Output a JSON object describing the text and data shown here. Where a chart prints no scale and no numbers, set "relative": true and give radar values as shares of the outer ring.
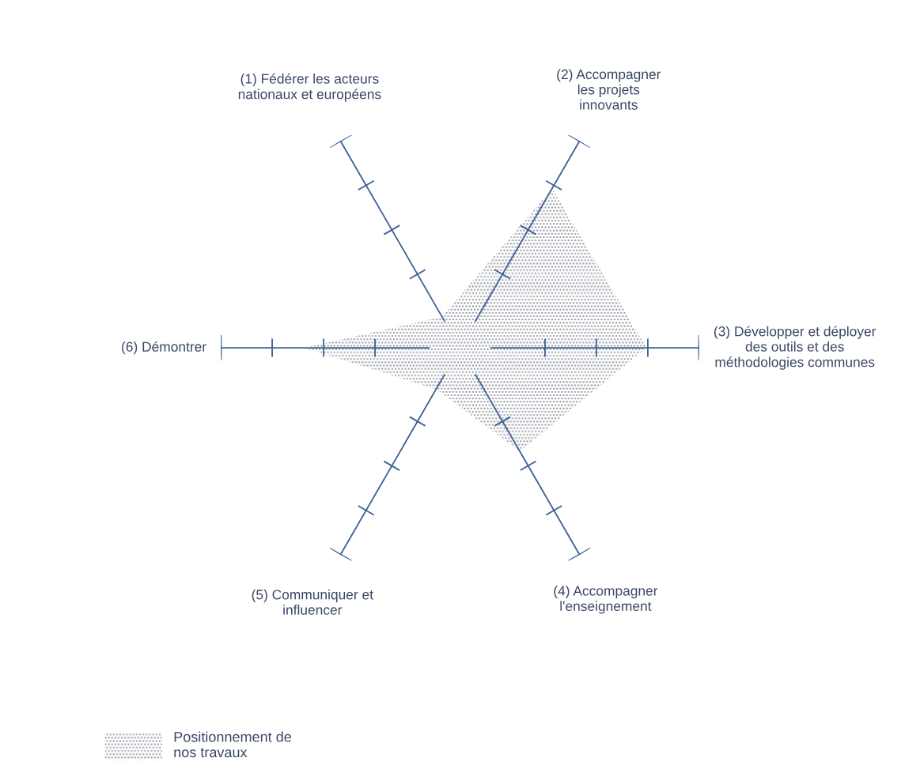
{
  "chart_data": {
    "type": "radar",
    "relative": true,
    "categories": [
      "(1) Fédérer les acteurs\nnationaux et européens",
      "(2) Accompagner\nles projets\ninnovants",
      "(3) Développer et déployer\ndes outils et des\nméthodologies communes",
      "(4) Accompagner\nl'enseignement",
      "(5) Communiquer et\ninfluencer",
      "(6) Démontrer"
    ],
    "series": [
      {
        "name": "Positionnement de\nnos travaux",
        "color": "#8a8f99",
        "values": [
          0.15,
          0.77,
          0.78,
          0.5,
          0.2,
          0.65
        ]
      }
    ],
    "legend": "bottom left"
  }
}
